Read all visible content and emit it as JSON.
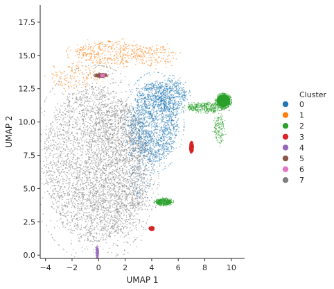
{
  "chart_data": {
    "type": "scatter",
    "title": "",
    "xlabel": "UMAP 1",
    "ylabel": "UMAP 2",
    "xlim": [
      -4.4,
      11.0
    ],
    "ylim": [
      -0.25,
      18.8
    ],
    "x_ticks": [
      -4,
      -2,
      0,
      2,
      4,
      6,
      8,
      10
    ],
    "x_tick_labels": [
      "−4",
      "−2",
      "0",
      "2",
      "4",
      "6",
      "8",
      "10"
    ],
    "y_ticks": [
      0.0,
      2.5,
      5.0,
      7.5,
      10.0,
      12.5,
      15.0,
      17.5
    ],
    "y_tick_labels": [
      "0.0",
      "2.5",
      "5.0",
      "7.5",
      "10.0",
      "12.5",
      "15.0",
      "17.5"
    ],
    "grid": false,
    "legend": {
      "title": "Cluster",
      "placement": "right",
      "entries": [
        {
          "label": "0",
          "color": "#1f77b4"
        },
        {
          "label": "1",
          "color": "#ff7f0e"
        },
        {
          "label": "2",
          "color": "#2ca02c"
        },
        {
          "label": "3",
          "color": "#d62728"
        },
        {
          "label": "4",
          "color": "#9467bd"
        },
        {
          "label": "5",
          "color": "#8c564b"
        },
        {
          "label": "6",
          "color": "#e377c2"
        },
        {
          "label": "7",
          "color": "#7f7f7f"
        }
      ]
    },
    "series": [
      {
        "name": "7",
        "color": "#7f7f7f",
        "regions": [
          {
            "cx": -0.3,
            "cy": 6.9,
            "rx": 3.9,
            "ry": 5.9,
            "density": "very dense"
          },
          {
            "cx": 1.5,
            "cy": 6.5,
            "rx": 2.5,
            "ry": 5.2,
            "density": "dense"
          }
        ]
      },
      {
        "name": "0",
        "color": "#1f77b4",
        "regions": [
          {
            "cx": 4.2,
            "cy": 10.0,
            "rx": 1.8,
            "ry": 3.0,
            "density": "dense"
          },
          {
            "cx": 3.2,
            "cy": 7.2,
            "rx": 1.0,
            "ry": 3.0,
            "density": "sparse"
          },
          {
            "cx": 5.4,
            "cy": 12.0,
            "rx": 1.2,
            "ry": 1.2,
            "density": "medium"
          }
        ]
      },
      {
        "name": "1",
        "color": "#ff7f0e",
        "regions": [
          {
            "cx": 0.8,
            "cy": 15.2,
            "rx": 2.6,
            "ry": 0.9,
            "density": "medium"
          },
          {
            "cx": -1.8,
            "cy": 13.4,
            "rx": 1.8,
            "ry": 0.9,
            "density": "sparse"
          },
          {
            "cx": 4.2,
            "cy": 15.0,
            "rx": 1.6,
            "ry": 0.8,
            "density": "sparse"
          }
        ]
      },
      {
        "name": "2",
        "color": "#2ca02c",
        "regions": [
          {
            "cx": 8.2,
            "cy": 11.1,
            "rx": 1.5,
            "ry": 0.35,
            "density": "medium"
          },
          {
            "cx": 9.4,
            "cy": 11.6,
            "rx": 0.5,
            "ry": 0.45,
            "density": "dense"
          },
          {
            "cx": 9.1,
            "cy": 9.4,
            "rx": 0.4,
            "ry": 1.0,
            "density": "sparse"
          },
          {
            "cx": 4.9,
            "cy": 4.0,
            "rx": 0.6,
            "ry": 0.25,
            "density": "medium"
          }
        ]
      },
      {
        "name": "3",
        "color": "#d62728",
        "regions": [
          {
            "cx": 7.0,
            "cy": 8.1,
            "rx": 0.12,
            "ry": 0.35,
            "density": "dense"
          },
          {
            "cx": 4.0,
            "cy": 2.0,
            "rx": 0.15,
            "ry": 0.12,
            "density": "dense"
          }
        ]
      },
      {
        "name": "4",
        "color": "#9467bd",
        "regions": [
          {
            "cx": -0.1,
            "cy": 0.2,
            "rx": 0.1,
            "ry": 0.5,
            "density": "sparse"
          }
        ]
      },
      {
        "name": "5",
        "color": "#8c564b",
        "regions": [
          {
            "cx": 0.2,
            "cy": 13.5,
            "rx": 0.45,
            "ry": 0.15,
            "density": "medium"
          }
        ]
      },
      {
        "name": "6",
        "color": "#e377c2",
        "regions": [
          {
            "cx": 0.3,
            "cy": 13.5,
            "rx": 0.15,
            "ry": 0.1,
            "density": "sparse"
          }
        ]
      }
    ]
  }
}
